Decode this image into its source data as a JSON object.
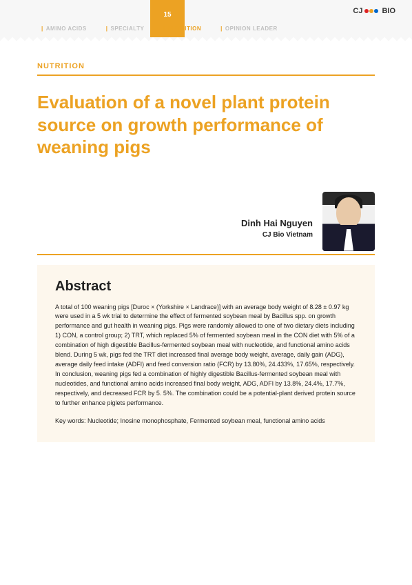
{
  "header": {
    "page_number": "15",
    "logo_text": "BIO",
    "nav": [
      {
        "label": "AMINO ACIDS",
        "active": false
      },
      {
        "label": "SPECIALTY",
        "active": false
      },
      {
        "label": "NUTRITION",
        "active": true
      },
      {
        "label": "OPINION LEADER",
        "active": false
      }
    ],
    "colors": {
      "accent": "#eca223",
      "nav_inactive": "#c0c0c0",
      "header_bg": "#f7f7f7",
      "abstract_bg": "#fdf7ed"
    }
  },
  "article": {
    "section_label": "NUTRITION",
    "title": "Evaluation of a novel plant protein source on growth performance of weaning pigs",
    "author_name": "Dinh Hai Nguyen",
    "author_affiliation": "CJ Bio Vietnam",
    "abstract_heading": "Abstract",
    "abstract_body": "A total of 100 weaning pigs [Duroc × (Yorkshire × Landrace)] with an average body weight of 8.28 ± 0.97 kg were used in a 5 wk trial to determine the effect of fermented soybean meal by Bacillus spp. on growth performance and gut health in weaning pigs. Pigs were randomly allowed to one of two dietary diets including 1) CON, a control group; 2) TRT, which replaced 5% of fermented soybean meal in the CON diet with 5% of a combination of high digestible Bacillus-fermented soybean meal with nucleotide, and functional amino acids blend. During 5 wk, pigs fed the TRT diet increased final average body weight, average, daily gain (ADG), average daily feed intake (ADFI) and feed conversion ratio (FCR) by 13.80%, 24.433%, 17.65%, respectively. In conclusion, weaning pigs fed a combination of highly digestible Bacillus-fermented soybean meal with nucleotides, and functional amino acids increased final body weight, ADG, ADFI by 13.8%, 24.4%, 17.7%, respectively, and decreased FCR by 5. 5%. The combination could be a potential-plant derived protein source to further enhance piglets performance.",
    "keywords": "Key words: Nucleotide; Inosine monophosphate, Fermented soybean meal, functional amino acids"
  },
  "typography": {
    "title_fontsize": 26,
    "section_label_fontsize": 11,
    "author_name_fontsize": 13,
    "abstract_title_fontsize": 20,
    "body_fontsize": 9
  }
}
